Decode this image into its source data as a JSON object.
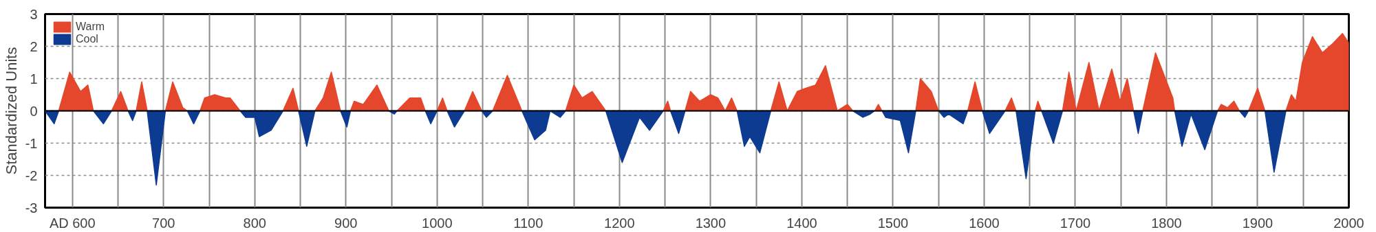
{
  "chart_data": {
    "type": "area",
    "ylabel": "Standardized Units",
    "x": [
      570,
      580,
      585,
      597,
      609,
      617,
      623,
      634,
      643,
      653,
      661,
      666,
      670,
      676,
      682,
      692,
      702,
      710,
      721,
      726,
      733,
      740,
      745,
      756,
      768,
      773,
      784,
      790,
      800,
      805,
      818,
      831,
      842,
      848,
      857,
      866,
      875,
      884,
      894,
      901,
      905,
      909,
      919,
      934,
      947,
      953,
      956,
      970,
      982,
      987,
      993,
      1000,
      1006,
      1011,
      1019,
      1030,
      1039,
      1049,
      1054,
      1061,
      1077,
      1093,
      1107,
      1119,
      1124,
      1135,
      1141,
      1150,
      1159,
      1170,
      1185,
      1203,
      1222,
      1233,
      1248,
      1253,
      1256,
      1265,
      1272,
      1278,
      1288,
      1300,
      1308,
      1316,
      1323,
      1329,
      1337,
      1343,
      1354,
      1366,
      1375,
      1384,
      1395,
      1404,
      1415,
      1426,
      1439,
      1450,
      1456,
      1467,
      1475,
      1480,
      1484,
      1488,
      1492,
      1508,
      1517,
      1525,
      1530,
      1542,
      1550,
      1556,
      1561,
      1577,
      1582,
      1590,
      1598,
      1606,
      1623,
      1630,
      1635,
      1646,
      1656,
      1659,
      1663,
      1676,
      1686,
      1693,
      1701,
      1715,
      1726,
      1740,
      1749,
      1757,
      1764,
      1769,
      1774,
      1788,
      1807,
      1809,
      1817,
      1827,
      1842,
      1856,
      1860,
      1867,
      1874,
      1880,
      1886,
      1890,
      1900,
      1908,
      1918,
      1931,
      1937,
      1942,
      1949,
      1960,
      1971,
      1983,
      1993,
      2000
    ],
    "series": [
      {
        "name": "Warm",
        "color": "#e4472b",
        "values": [
          null,
          null,
          0,
          1.2,
          0.6,
          0.8,
          0,
          null,
          0,
          0.6,
          0,
          null,
          0,
          0.9,
          0,
          null,
          0,
          0.9,
          0.1,
          0,
          null,
          0,
          0.4,
          0.5,
          0.4,
          0.4,
          0,
          null,
          null,
          null,
          null,
          0,
          0.7,
          0,
          null,
          0,
          0.4,
          1.2,
          0,
          null,
          0,
          0.3,
          0.2,
          0.8,
          0,
          null,
          0,
          0.4,
          0.4,
          0,
          null,
          0,
          0.4,
          0,
          null,
          0,
          0.6,
          0,
          null,
          0,
          1.1,
          0,
          null,
          null,
          null,
          null,
          0,
          0.8,
          0.4,
          0.6,
          0,
          null,
          null,
          null,
          0,
          0.3,
          0,
          null,
          0,
          0.6,
          0.3,
          0.5,
          0.4,
          0,
          0.4,
          0,
          null,
          null,
          null,
          0,
          0.9,
          0,
          0.6,
          0.7,
          0.8,
          1.4,
          0,
          0.2,
          0,
          null,
          null,
          0,
          0.2,
          0,
          null,
          null,
          null,
          0,
          1.0,
          0.6,
          0,
          null,
          null,
          null,
          0,
          0.9,
          0,
          null,
          0,
          0.4,
          0,
          null,
          0,
          0.3,
          0,
          null,
          0,
          1.2,
          0,
          1.5,
          0,
          1.3,
          0.3,
          1.0,
          0,
          null,
          0,
          1.8,
          0.4,
          0,
          null,
          null,
          null,
          0,
          0.2,
          0.1,
          0.3,
          0,
          null,
          0,
          0.7,
          0,
          null,
          0,
          0.5,
          0.3,
          1.5,
          2.3,
          1.8,
          2.1,
          2.4,
          2.1
        ]
      },
      {
        "name": "Cool",
        "color": "#0d3b92",
        "values": [
          0,
          -0.4,
          0,
          null,
          null,
          null,
          0,
          -0.4,
          0,
          null,
          0,
          -0.3,
          0,
          null,
          0,
          -2.3,
          0,
          null,
          null,
          0,
          -0.4,
          0,
          null,
          null,
          null,
          null,
          0,
          -0.2,
          -0.2,
          -0.8,
          -0.6,
          0,
          null,
          0,
          -1.1,
          0,
          null,
          null,
          0,
          -0.5,
          0,
          null,
          null,
          null,
          0,
          -0.1,
          0,
          null,
          null,
          0,
          -0.4,
          0,
          null,
          0,
          -0.5,
          0,
          null,
          0,
          -0.2,
          0,
          null,
          0,
          -0.9,
          -0.6,
          0,
          -0.2,
          0,
          null,
          null,
          null,
          0,
          -1.6,
          -0.2,
          -0.6,
          0,
          null,
          0,
          -0.7,
          0,
          null,
          null,
          null,
          null,
          null,
          null,
          0,
          -1.1,
          -0.8,
          -1.3,
          0,
          null,
          null,
          null,
          null,
          null,
          null,
          null,
          null,
          0,
          -0.2,
          -0.1,
          0,
          null,
          0,
          -0.2,
          -0.3,
          -1.3,
          0,
          null,
          null,
          0,
          -0.2,
          -0.1,
          -0.4,
          0,
          null,
          0,
          -0.7,
          0,
          null,
          0,
          -2.1,
          0,
          null,
          0,
          -1.0,
          0,
          null,
          null,
          null,
          null,
          null,
          null,
          null,
          0,
          -0.7,
          0,
          null,
          null,
          0,
          -1.1,
          -0.1,
          -1.2,
          0,
          null,
          null,
          null,
          0,
          -0.2,
          0,
          null,
          0,
          -1.9,
          0,
          null,
          null,
          null,
          null,
          null,
          null,
          null,
          null
        ]
      }
    ],
    "xlim": [
      570,
      2000
    ],
    "ylim": [
      -3,
      3
    ],
    "xticks": [
      {
        "value": 600,
        "label": "AD 600"
      },
      {
        "value": 650,
        "label": null
      },
      700,
      {
        "value": 750,
        "label": null
      },
      800,
      {
        "value": 850,
        "label": null
      },
      900,
      {
        "value": 950,
        "label": null
      },
      1000,
      {
        "value": 1050,
        "label": null
      },
      1100,
      {
        "value": 1150,
        "label": null
      },
      1200,
      {
        "value": 1250,
        "label": null
      },
      1300,
      {
        "value": 1350,
        "label": null
      },
      1400,
      {
        "value": 1450,
        "label": null
      },
      1500,
      {
        "value": 1550,
        "label": null
      },
      1600,
      {
        "value": 1650,
        "label": null
      },
      1700,
      {
        "value": 1750,
        "label": null
      },
      1800,
      {
        "value": 1850,
        "label": null
      },
      1900,
      {
        "value": 1950,
        "label": null
      },
      2000
    ],
    "yticks": [
      -3,
      -2,
      -1,
      0,
      1,
      2,
      3
    ],
    "grid": true,
    "legend": "top left"
  }
}
